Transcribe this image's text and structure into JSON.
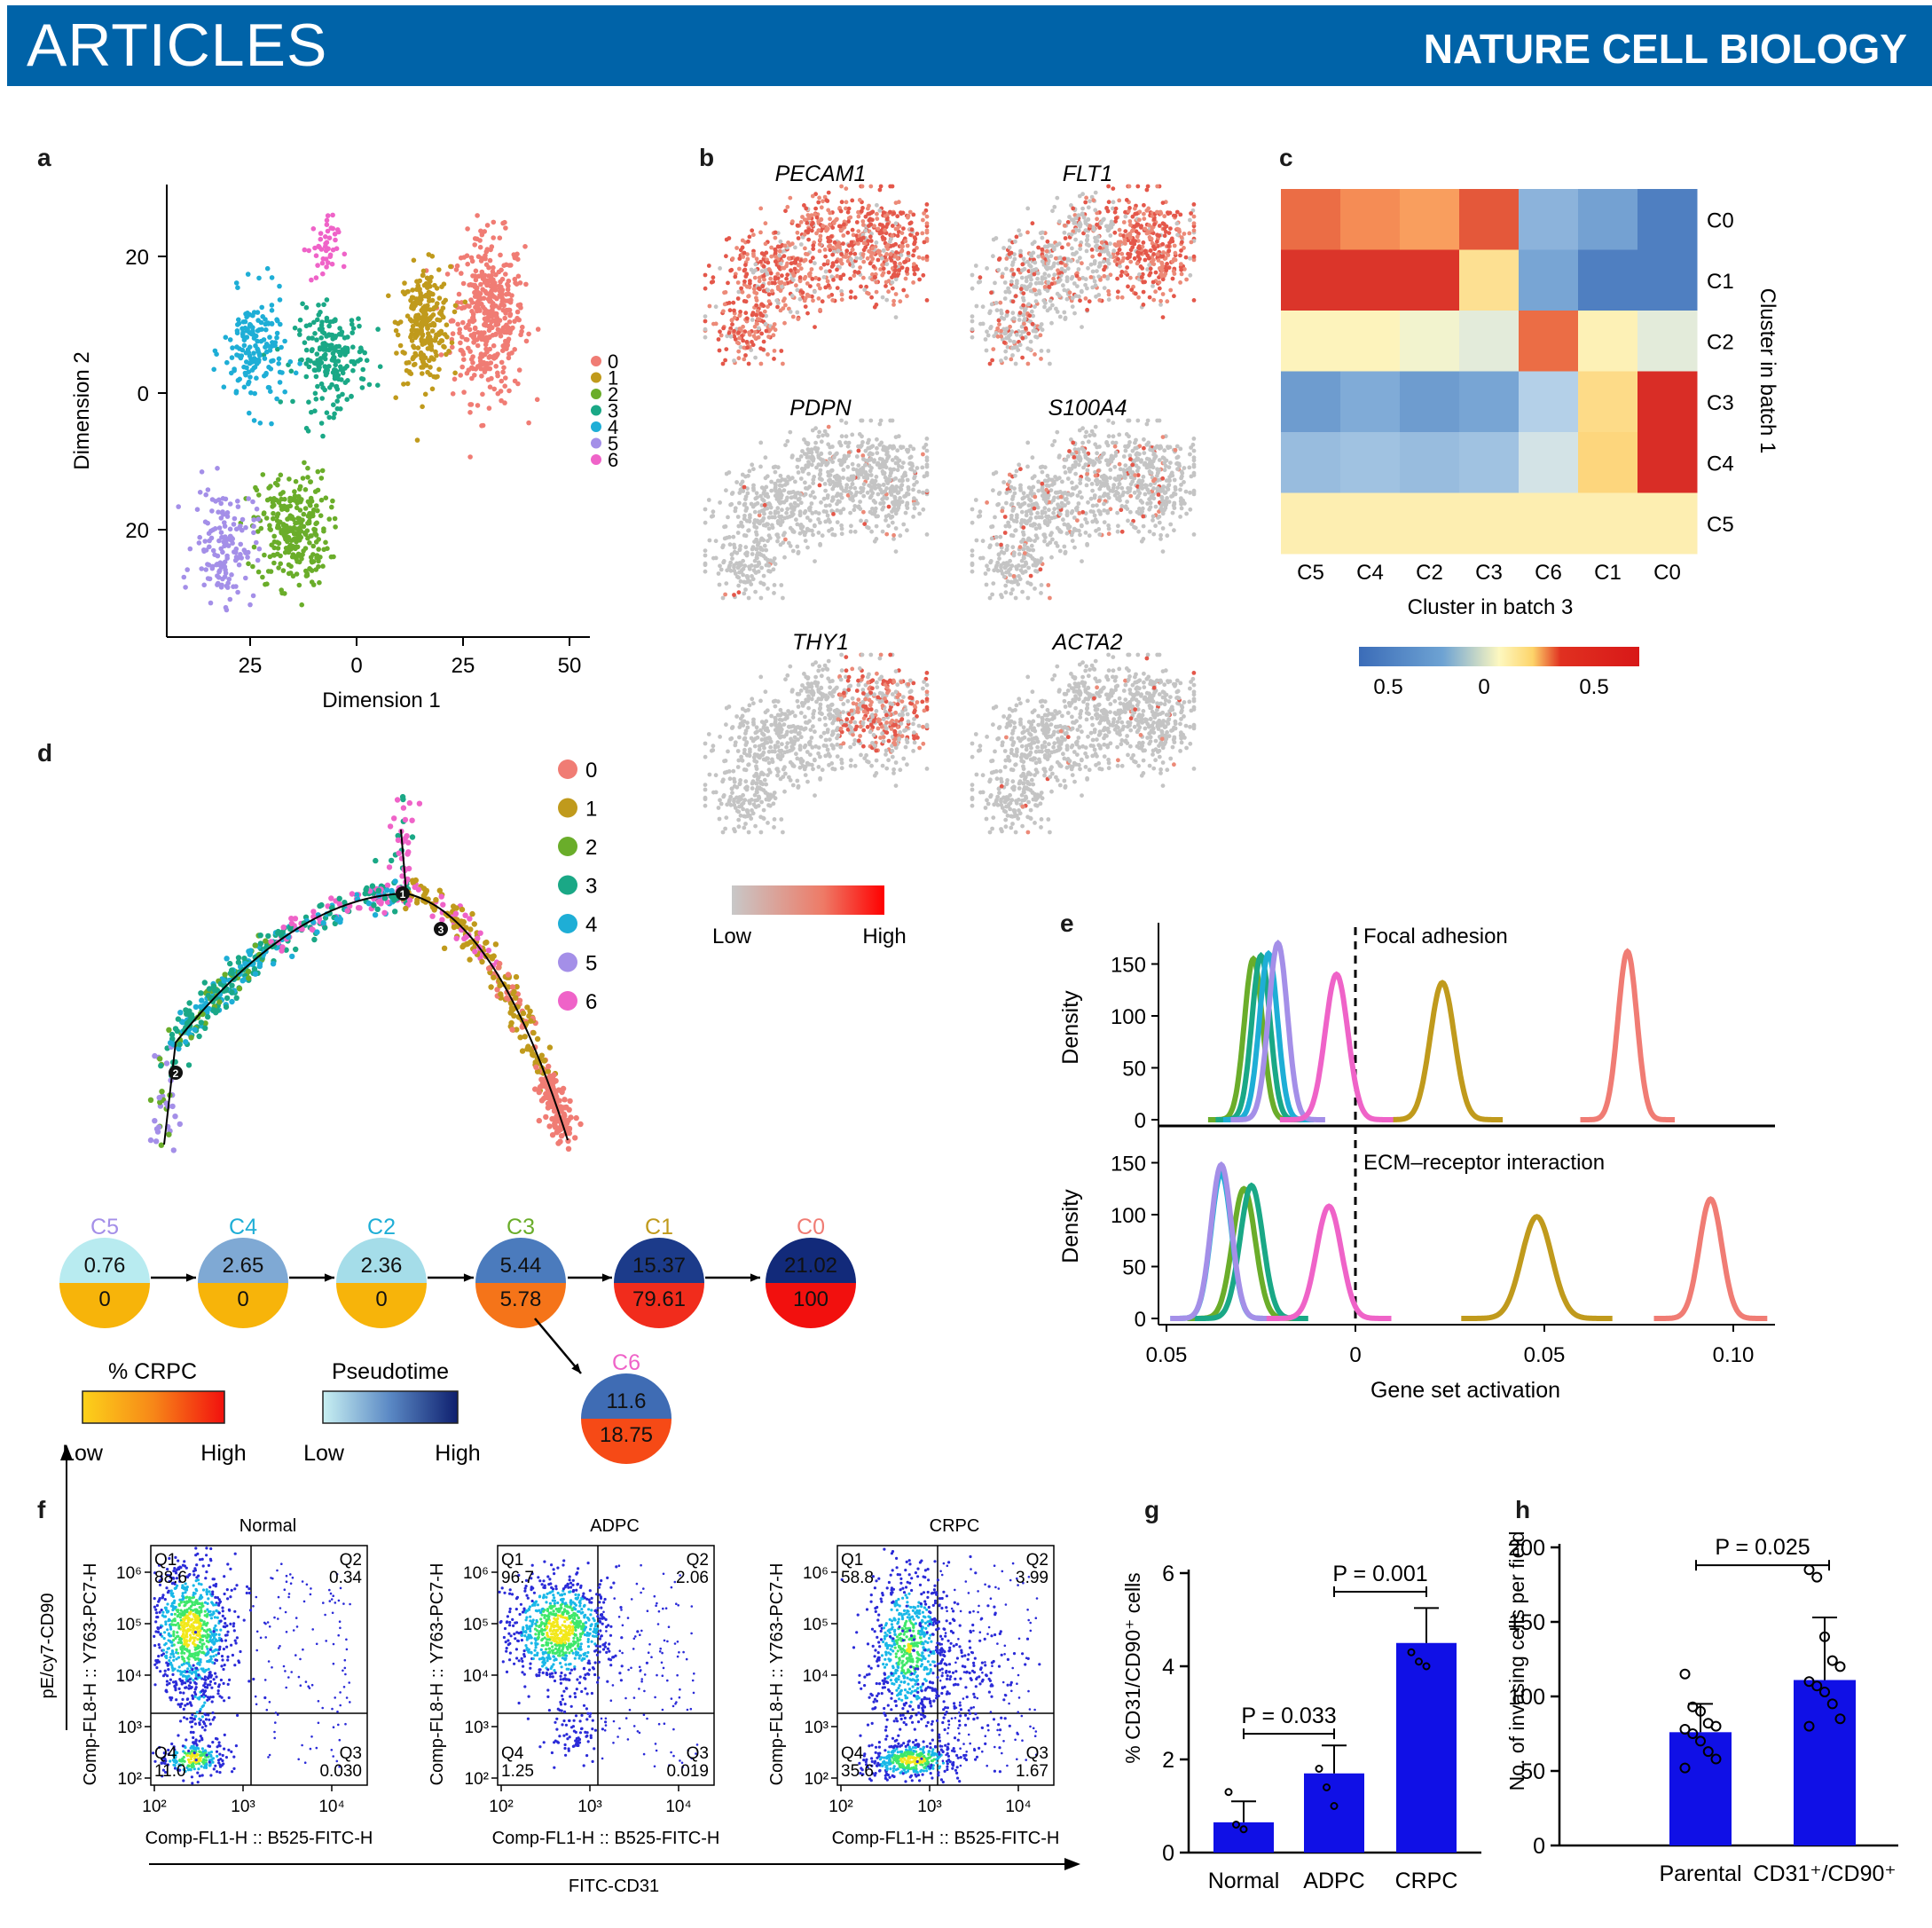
{
  "header": {
    "section": "ARTICLES",
    "journal": "NATURE CELL BIOLOGY"
  },
  "panel_labels": [
    "a",
    "b",
    "c",
    "d",
    "e",
    "f",
    "g",
    "h"
  ],
  "colors": {
    "clusters": [
      "#f07c74",
      "#c09a1c",
      "#6aad2a",
      "#1aa886",
      "#1eaed6",
      "#a48fe8",
      "#ef63c8"
    ],
    "bar": "#1010e6",
    "header": "#0063a8"
  },
  "chart_data": [
    {
      "panel": "a",
      "type": "scatter",
      "xlabel": "Dimension 1",
      "ylabel": "Dimension 2",
      "xticks": [
        "25",
        "0",
        "25",
        "50"
      ],
      "yticks": [
        "20",
        "0",
        "20"
      ],
      "legend": [
        "0",
        "1",
        "2",
        "3",
        "4",
        "5",
        "6"
      ],
      "legend_placement": "right",
      "clusters": [
        {
          "name": "0",
          "center": [
            31,
            11
          ],
          "spread": [
            7,
            10
          ],
          "n": 420
        },
        {
          "name": "1",
          "center": [
            16,
            10
          ],
          "spread": [
            5,
            7
          ],
          "n": 260
        },
        {
          "name": "2",
          "center": [
            -15,
            -20
          ],
          "spread": [
            7,
            7
          ],
          "n": 280
        },
        {
          "name": "3",
          "center": [
            -6,
            5
          ],
          "spread": [
            7,
            6
          ],
          "n": 210
        },
        {
          "name": "4",
          "center": [
            -24,
            6
          ],
          "spread": [
            6,
            7
          ],
          "n": 170
        },
        {
          "name": "5",
          "center": [
            -31,
            -22
          ],
          "spread": [
            6,
            7
          ],
          "n": 150
        },
        {
          "name": "6",
          "center": [
            -8,
            21
          ],
          "spread": [
            3,
            4
          ],
          "n": 45
        }
      ]
    },
    {
      "panel": "b",
      "type": "scatter",
      "genes": [
        "PECAM1",
        "FLT1",
        "PDPN",
        "S100A4",
        "THY1",
        "ACTA2"
      ],
      "expression_level": [
        0.85,
        0.55,
        0.03,
        0.1,
        0.25,
        0.02
      ],
      "colorbar": {
        "low": "Low",
        "high": "High"
      }
    },
    {
      "panel": "c",
      "type": "heatmap",
      "xlabel": "Cluster in batch 3",
      "ylabel": "Cluster in batch 1",
      "x": [
        "C5",
        "C4",
        "C2",
        "C3",
        "C6",
        "C1",
        "C0"
      ],
      "y": [
        "C0",
        "C1",
        "C2",
        "C3",
        "C4",
        "C5"
      ],
      "values": [
        [
          0.38,
          0.32,
          0.28,
          0.42,
          -0.25,
          -0.32,
          -0.5
        ],
        [
          0.55,
          0.55,
          0.55,
          0.1,
          -0.3,
          -0.5,
          -0.5
        ],
        [
          0.02,
          0.02,
          -0.02,
          -0.05,
          0.38,
          0.03,
          -0.05
        ],
        [
          -0.35,
          -0.28,
          -0.35,
          -0.3,
          -0.15,
          0.12,
          0.58
        ],
        [
          -0.22,
          -0.2,
          -0.22,
          -0.2,
          -0.08,
          0.14,
          0.58
        ],
        [
          0.04,
          0.04,
          0.04,
          0.04,
          0.04,
          0.04,
          0.04
        ]
      ],
      "colorbar_ticks": [
        "0.5",
        "0",
        "0.5"
      ]
    },
    {
      "panel": "d",
      "type": "scatter",
      "legend": [
        "0",
        "1",
        "2",
        "3",
        "4",
        "5",
        "6"
      ],
      "branch_points": [
        "1",
        "2",
        "3"
      ],
      "nodes": [
        {
          "label": "C5",
          "top": "0.76",
          "bottom": "0",
          "top_color": "#b8ebf0",
          "bottom_color": "#f7b40a"
        },
        {
          "label": "C4",
          "top": "2.65",
          "bottom": "0",
          "top_color": "#7fa9d4",
          "bottom_color": "#f7b40a"
        },
        {
          "label": "C2",
          "top": "2.36",
          "bottom": "0",
          "top_color": "#a5dde9",
          "bottom_color": "#f7b40a"
        },
        {
          "label": "C3",
          "top": "5.44",
          "bottom": "5.78",
          "top_color": "#4b7bbd",
          "bottom_color": "#f57419"
        },
        {
          "label": "C1",
          "top": "15.37",
          "bottom": "79.61",
          "top_color": "#1c3b8a",
          "bottom_color": "#f12c1c"
        },
        {
          "label": "C0",
          "top": "21.02",
          "bottom": "100",
          "top_color": "#122a7a",
          "bottom_color": "#f2100e"
        },
        {
          "label": "C6",
          "top": "11.6",
          "bottom": "18.75",
          "top_color": "#3f6cb4",
          "bottom_color": "#f64a16"
        }
      ],
      "crpc_bar": {
        "title": "% CRPC",
        "low": "Low",
        "high": "High"
      },
      "pseudotime_bar": {
        "title": "Pseudotime",
        "low": "Low",
        "high": "High"
      }
    },
    {
      "panel": "e",
      "type": "line",
      "xlabel": "Gene set activation",
      "ylabel": "Density",
      "xticks": [
        "0.05",
        "0",
        "0.05",
        "0.10"
      ],
      "yticks": [
        "0",
        "50",
        "100",
        "150"
      ],
      "xlim": [
        -0.05,
        0.11
      ],
      "ylim": [
        0,
        180
      ],
      "facets": [
        {
          "title": "Focal adhesion",
          "peaks": [
            {
              "series": "0",
              "mu": 0.072,
              "sd": 0.0025,
              "h": 162
            },
            {
              "series": "1",
              "mu": 0.023,
              "sd": 0.0032,
              "h": 132
            },
            {
              "series": "2",
              "mu": -0.027,
              "sd": 0.0024,
              "h": 155
            },
            {
              "series": "3",
              "mu": -0.025,
              "sd": 0.0024,
              "h": 158
            },
            {
              "series": "4",
              "mu": -0.023,
              "sd": 0.0024,
              "h": 160
            },
            {
              "series": "5",
              "mu": -0.0205,
              "sd": 0.0025,
              "h": 170
            },
            {
              "series": "6",
              "mu": -0.005,
              "sd": 0.003,
              "h": 140
            }
          ]
        },
        {
          "title": "ECM–receptor interaction",
          "peaks": [
            {
              "series": "0",
              "mu": 0.094,
              "sd": 0.003,
              "h": 115
            },
            {
              "series": "1",
              "mu": 0.048,
              "sd": 0.004,
              "h": 98
            },
            {
              "series": "2",
              "mu": -0.0295,
              "sd": 0.003,
              "h": 125
            },
            {
              "series": "3",
              "mu": -0.0275,
              "sd": 0.003,
              "h": 128
            },
            {
              "series": "4",
              "mu": -0.0355,
              "sd": 0.0027,
              "h": 140
            },
            {
              "series": "5",
              "mu": -0.0355,
              "sd": 0.0027,
              "h": 148
            },
            {
              "series": "6",
              "mu": -0.007,
              "sd": 0.0033,
              "h": 108
            }
          ]
        }
      ]
    },
    {
      "panel": "f",
      "type": "scatter",
      "xlabel": "Comp-FL1-H :: B525-FITC-H",
      "ylabel": "Comp-FL8-H :: Y763-PC7-H",
      "axis_x_outer": "FITC-CD31",
      "axis_y_outer": "pE/cy7-CD90",
      "xticks": [
        "10²",
        "10³",
        "10⁴"
      ],
      "yticks": [
        "10²",
        "10³",
        "10⁴",
        "10⁵",
        "10⁶"
      ],
      "plots": [
        {
          "title": "Normal",
          "q1": "88.6",
          "q2": "0.34",
          "q3": "0.030",
          "q4": "11.0"
        },
        {
          "title": "ADPC",
          "q1": "96.7",
          "q2": "2.06",
          "q3": "0.019",
          "q4": "1.25"
        },
        {
          "title": "CRPC",
          "q1": "58.8",
          "q2": "3.99",
          "q3": "1.67",
          "q4": "35.6"
        }
      ],
      "quadrant_names": [
        "Q1",
        "Q2",
        "Q3",
        "Q4"
      ]
    },
    {
      "panel": "g",
      "type": "bar",
      "ylabel": "% CD31/CD90⁺ cells",
      "categories": [
        "Normal",
        "ADPC",
        "CRPC"
      ],
      "values": [
        0.65,
        1.7,
        4.5
      ],
      "errors": [
        0.45,
        0.6,
        0.75
      ],
      "ylim": [
        0,
        6
      ],
      "yticks": [
        "0",
        "2",
        "4",
        "6"
      ],
      "points": [
        [
          1.3,
          0.6,
          0.5
        ],
        [
          1.8,
          1.4,
          1.0
        ],
        [
          4.3,
          4.1,
          4.0
        ]
      ],
      "comparisons": [
        {
          "from": "Normal",
          "to": "ADPC",
          "label": "P = 0.033",
          "y": 2.55
        },
        {
          "from": "ADPC",
          "to": "CRPC",
          "label": "P = 0.001",
          "y": 5.6
        }
      ]
    },
    {
      "panel": "h",
      "type": "bar",
      "ylabel": "No. of invasing cells per field",
      "categories": [
        "Parental",
        "CD31⁺/CD90⁺"
      ],
      "values": [
        76,
        111
      ],
      "errors": [
        19,
        42
      ],
      "ylim": [
        0,
        200
      ],
      "yticks": [
        "0",
        "50",
        "100",
        "150",
        "200"
      ],
      "points": [
        [
          115,
          93,
          90,
          82,
          80,
          78,
          75,
          70,
          63,
          58,
          52
        ],
        [
          185,
          180,
          140,
          124,
          120,
          110,
          107,
          103,
          95,
          85,
          80
        ]
      ],
      "comparisons": [
        {
          "from": "Parental",
          "to": "CD31⁺/CD90⁺",
          "label": "P = 0.025",
          "y": 188
        }
      ]
    }
  ]
}
